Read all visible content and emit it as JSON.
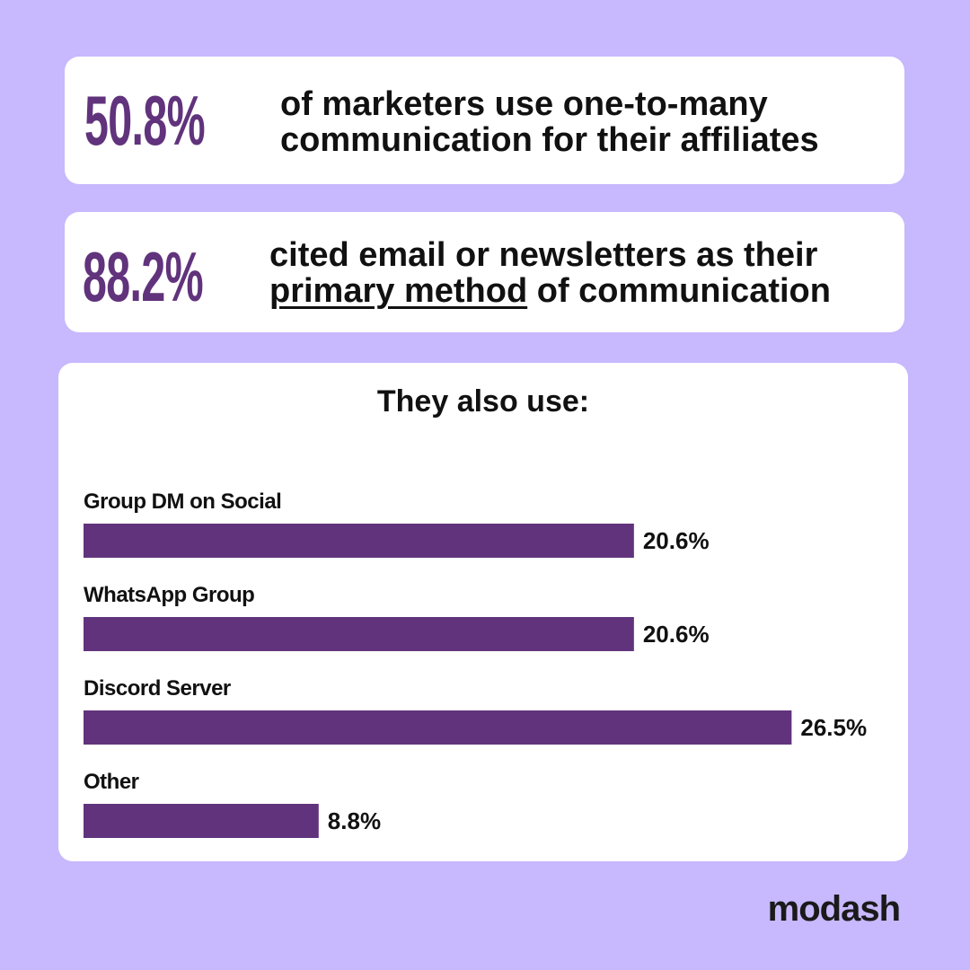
{
  "stats": [
    {
      "number": "50.8%",
      "line1": "of marketers use one-to-many",
      "line2": "communication for their affiliates"
    },
    {
      "number": "88.2%",
      "line1": "cited email or newsletters as their",
      "line2_underlined": "primary method",
      "line2_rest": " of communication"
    }
  ],
  "brand": "modash",
  "colors": {
    "background": "#c8b8fd",
    "accent": "#61337c",
    "bar": "#61337c"
  },
  "chart_data": {
    "type": "bar",
    "orientation": "horizontal",
    "title": "They also use:",
    "categories": [
      "Group DM on Social",
      "WhatsApp Group",
      "Discord Server",
      "Other"
    ],
    "values": [
      20.6,
      20.6,
      26.5,
      8.8
    ],
    "value_labels": [
      "20.6%",
      "20.6%",
      "26.5%",
      "8.8%"
    ],
    "unit": "%",
    "grid": false
  }
}
